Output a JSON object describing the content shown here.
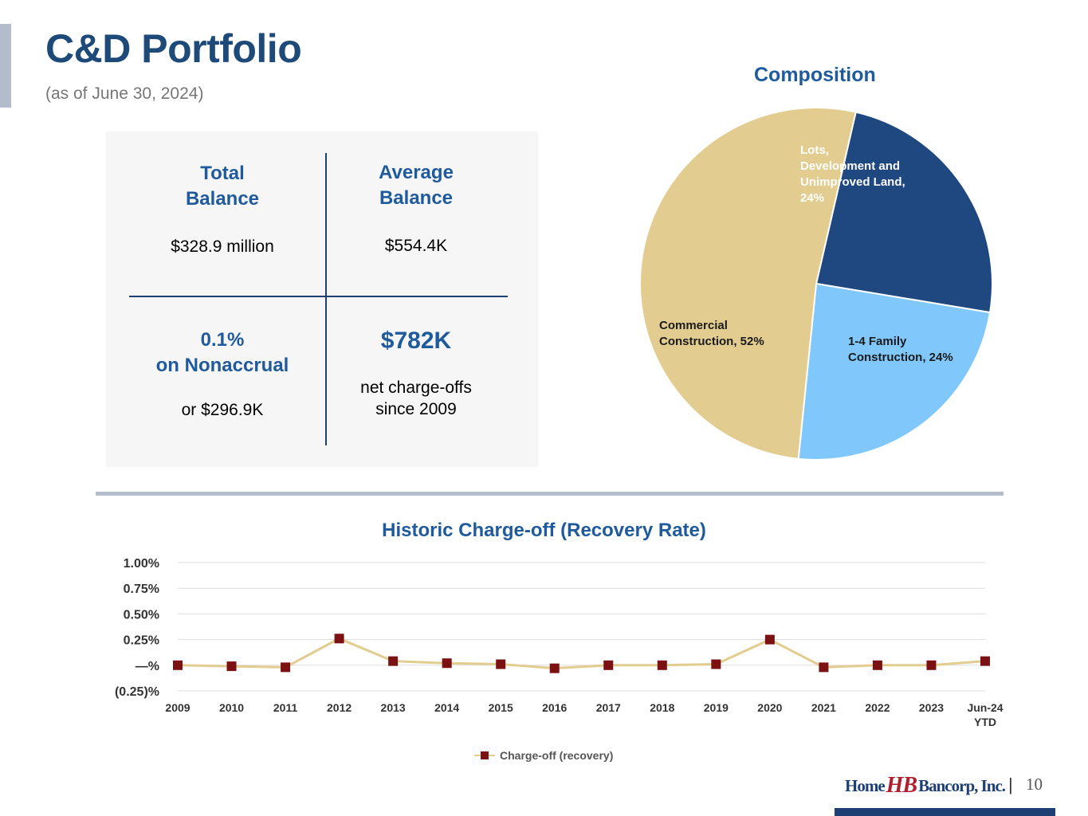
{
  "header": {
    "title": "C&D Portfolio",
    "subtitle": "(as of June 30, 2024)"
  },
  "stats": {
    "total_balance": {
      "label": "Total\nBalance",
      "value": "$328.9 million"
    },
    "average_balance": {
      "label": "Average\nBalance",
      "value": "$554.4K"
    },
    "nonaccrual": {
      "label": "0.1%\non Nonaccrual",
      "value": "or $296.9K"
    },
    "charge_offs": {
      "label": "$782K",
      "value": "net charge-offs\nsince 2009"
    }
  },
  "chart_data": [
    {
      "type": "pie",
      "title": "Composition",
      "slices": [
        {
          "label": "Lots,\nDevelopment and\nUnimproved Land,\n24%",
          "value": 24,
          "color": "#1f4880"
        },
        {
          "label": "1-4 Family\nConstruction, 24%",
          "value": 24,
          "color": "#80c8fc"
        },
        {
          "label": "Commercial\nConstruction, 52%",
          "value": 52,
          "color": "#e2cc8f"
        }
      ]
    },
    {
      "type": "line",
      "title": "Historic Charge-off (Recovery Rate)",
      "categories": [
        "2009",
        "2010",
        "2011",
        "2012",
        "2013",
        "2014",
        "2015",
        "2016",
        "2017",
        "2018",
        "2019",
        "2020",
        "2021",
        "2022",
        "2023",
        "Jun-24\nYTD"
      ],
      "series": [
        {
          "name": "Charge-off (recovery)",
          "values": [
            0.0,
            -0.01,
            -0.02,
            0.26,
            0.04,
            0.02,
            0.01,
            -0.03,
            0.0,
            0.0,
            0.01,
            0.25,
            -0.02,
            0.0,
            0.0,
            0.04
          ],
          "line_color": "#e2cc8f",
          "marker_color": "#7b1113"
        }
      ],
      "ylim": [
        -0.25,
        1.0
      ],
      "yticks": [
        1.0,
        0.75,
        0.5,
        0.25,
        0.0,
        -0.25
      ],
      "ytick_labels": [
        "1.00%",
        "0.75%",
        "0.50%",
        "0.25%",
        "—%",
        "(0.25)%"
      ],
      "grid": true,
      "legend": "bottom"
    }
  ],
  "footer": {
    "logo_left": "Home",
    "logo_mark": "HB",
    "logo_right": "Bancorp, Inc.",
    "separator": "|",
    "page_number": "10"
  }
}
